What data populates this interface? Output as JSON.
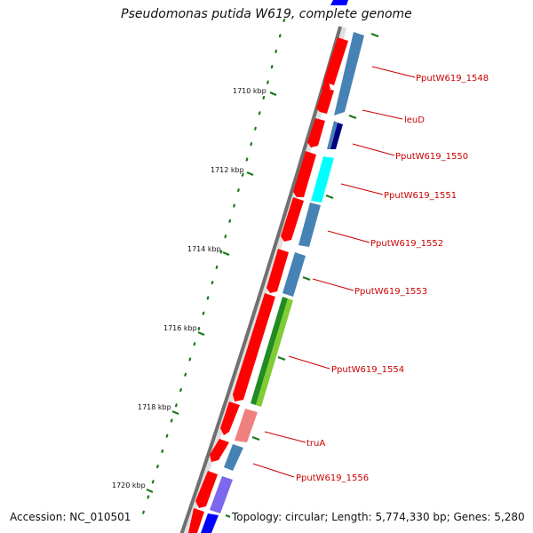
{
  "title": "Pseudomonas putida W619, complete genome",
  "accession_text": "Accession: NC_010501",
  "summary_text": "Topology: circular; Length: 5,774,330 bp; Genes: 5,280",
  "colors": {
    "backbone": "#808080",
    "tick": "#1a7a1a",
    "forward_gene": "#ff0000",
    "label_red": "#cc0000"
  },
  "scale_labels": [
    "1710 kbp",
    "1712 kbp",
    "1714 kbp",
    "1716 kbp",
    "1718 kbp",
    "1720 kbp"
  ],
  "gene_labels": [
    {
      "name": "PputW619_1548",
      "color": "#4682b4"
    },
    {
      "name": "leuD",
      "color": "#4682b4"
    },
    {
      "name": "PputW619_1550",
      "color": "#000080"
    },
    {
      "name": "PputW619_1551",
      "color": "#00ffff"
    },
    {
      "name": "PputW619_1552",
      "color": "#4682b4"
    },
    {
      "name": "PputW619_1553",
      "color": "#4682b4"
    },
    {
      "name": "PputW619_1554",
      "color": "#7fcc33"
    },
    {
      "name": "truA",
      "color": "#f08080"
    },
    {
      "name": "PputW619_1556",
      "color": "#4682b4"
    }
  ]
}
